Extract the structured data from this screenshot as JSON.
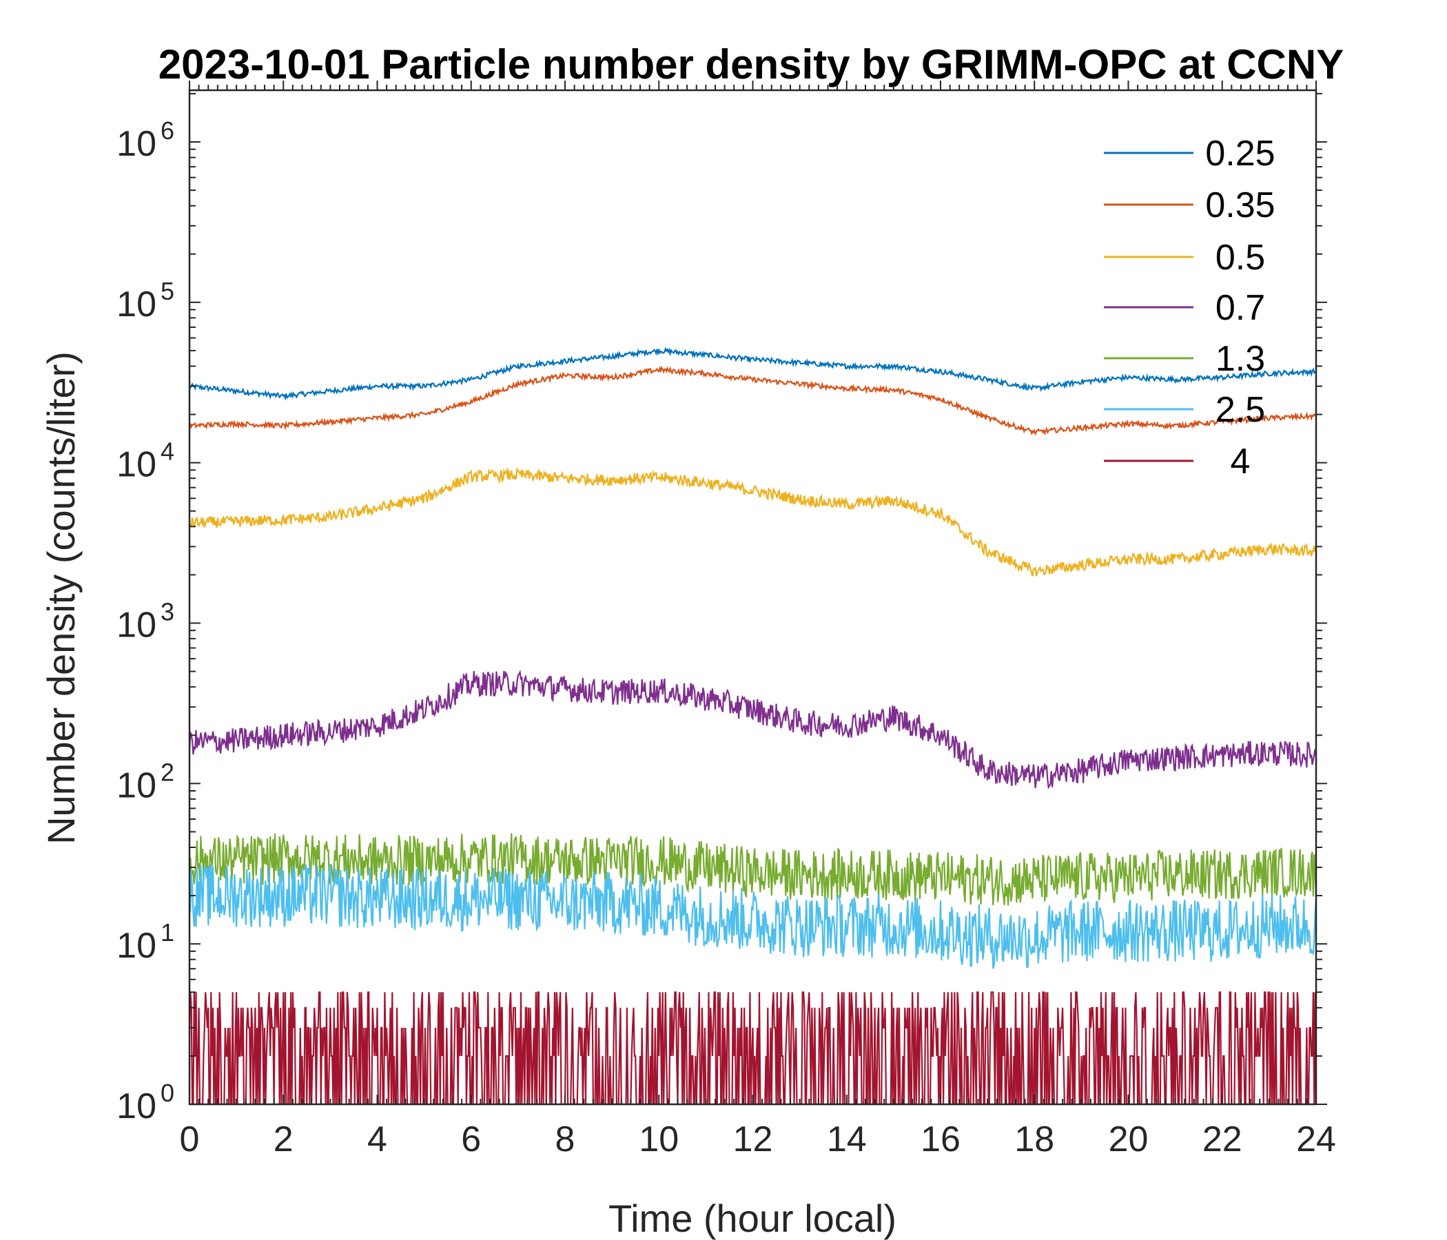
{
  "chart_data": {
    "type": "line",
    "title": "2023-10-01 Particle number density by GRIMM-OPC at CCNY",
    "xlabel": "Time (hour local)",
    "ylabel": "Number density (counts/liter)",
    "xlim": [
      0,
      24
    ],
    "ylim": [
      1,
      2100000
    ],
    "yscale": "log",
    "xticks": [
      0,
      2,
      4,
      6,
      8,
      10,
      12,
      14,
      16,
      18,
      20,
      22,
      24
    ],
    "xtick_labels": [
      "0",
      "2",
      "4",
      "6",
      "8",
      "10",
      "12",
      "14",
      "16",
      "18",
      "20",
      "22",
      "24"
    ],
    "yticks": [
      1,
      10,
      100,
      1000,
      10000,
      100000,
      1000000
    ],
    "ytick_labels": [
      {
        "base": "10",
        "exp": "0"
      },
      {
        "base": "10",
        "exp": "1"
      },
      {
        "base": "10",
        "exp": "2"
      },
      {
        "base": "10",
        "exp": "3"
      },
      {
        "base": "10",
        "exp": "4"
      },
      {
        "base": "10",
        "exp": "5"
      },
      {
        "base": "10",
        "exp": "6"
      }
    ],
    "grid": false,
    "legend_position": "top-right",
    "x": [
      0,
      1,
      2,
      3,
      4,
      5,
      6,
      7,
      8,
      9,
      10,
      11,
      12,
      13,
      14,
      15,
      16,
      17,
      18,
      19,
      20,
      21,
      22,
      23,
      24
    ],
    "series": [
      {
        "name": "0.25",
        "color": "#0072BD",
        "values": [
          30000,
          28000,
          26000,
          28000,
          30000,
          30000,
          33000,
          40000,
          43000,
          46000,
          50000,
          47000,
          44000,
          42000,
          40000,
          40000,
          37000,
          33000,
          29000,
          32000,
          34000,
          33000,
          34000,
          36000,
          37000
        ]
      },
      {
        "name": "0.35",
        "color": "#D95319",
        "values": [
          17000,
          17500,
          17000,
          18000,
          19000,
          20000,
          24000,
          31000,
          35000,
          34000,
          38000,
          36000,
          33000,
          31000,
          29000,
          28500,
          25000,
          19000,
          15500,
          16500,
          17500,
          17000,
          18000,
          19000,
          19500
        ]
      },
      {
        "name": "0.5",
        "color": "#EDB120",
        "values": [
          4200,
          4300,
          4400,
          4600,
          5200,
          6000,
          8200,
          8400,
          8000,
          7800,
          8100,
          7500,
          6700,
          5900,
          5500,
          5800,
          4800,
          2800,
          2100,
          2300,
          2500,
          2500,
          2700,
          2900,
          2800
        ]
      },
      {
        "name": "0.7",
        "color": "#7E2F8E",
        "values": [
          180,
          185,
          200,
          210,
          230,
          290,
          420,
          420,
          390,
          370,
          380,
          340,
          290,
          240,
          230,
          260,
          200,
          120,
          110,
          120,
          140,
          145,
          150,
          155,
          150
        ]
      },
      {
        "name": "1.3",
        "color": "#77AC30",
        "values": [
          33,
          33,
          34,
          34,
          33,
          33,
          34,
          34,
          33,
          33,
          33,
          30,
          28,
          27,
          27,
          27,
          26,
          25,
          25,
          26,
          26,
          27,
          27,
          28,
          28
        ]
      },
      {
        "name": "2.5",
        "color": "#4DBEEE",
        "values": [
          20,
          20,
          20,
          20,
          19,
          19,
          19,
          19,
          18,
          18,
          17,
          15,
          14,
          13,
          13,
          13,
          12,
          11,
          11,
          12,
          12,
          12,
          12,
          13,
          13
        ]
      },
      {
        "name": "4",
        "color": "#A2142F",
        "values": [
          2,
          2,
          2,
          2,
          2,
          2,
          2,
          2,
          2,
          2,
          2,
          2,
          2,
          2,
          2,
          2,
          2,
          2,
          2,
          2,
          2,
          2,
          2,
          2,
          2
        ]
      }
    ]
  }
}
